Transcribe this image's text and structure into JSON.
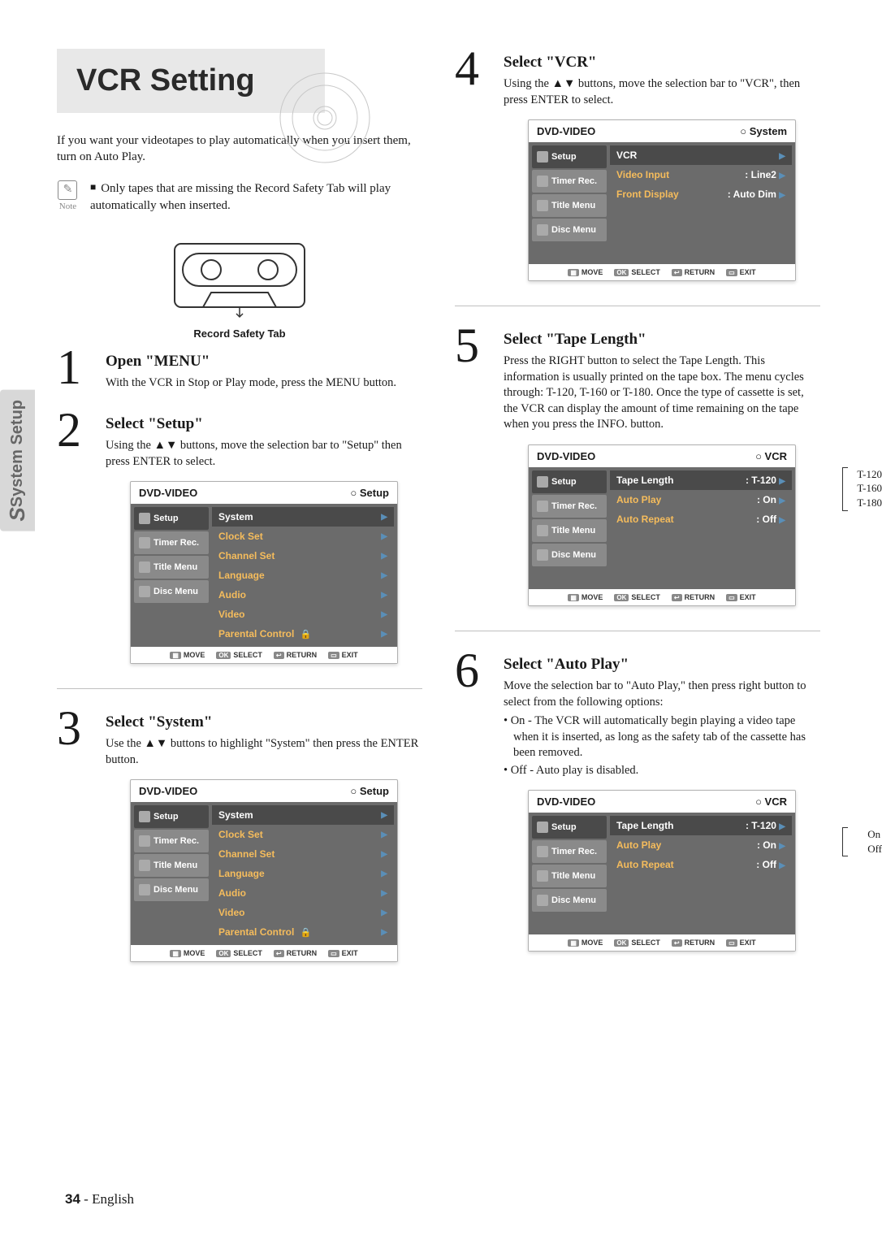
{
  "sidetab": "System Setup",
  "pageTitle": "VCR Setting",
  "intro": "If you want your videotapes to play automatically when you insert them, turn on Auto Play.",
  "noteLabel": "Note",
  "noteText": "Only tapes that are missing the Record Safety Tab will play automatically when inserted.",
  "cassetteCaption": "Record Safety Tab",
  "footer": {
    "page": "34",
    "sep": " - ",
    "lang": "English"
  },
  "steps": {
    "s1": {
      "num": "1",
      "title": "Open \"MENU\"",
      "body": "With the VCR in Stop or Play mode, press the MENU button."
    },
    "s2": {
      "num": "2",
      "title": "Select \"Setup\"",
      "body": "Using the ▲▼  buttons, move the selection bar to \"Setup\" then press ENTER to select."
    },
    "s3": {
      "num": "3",
      "title": "Select \"System\"",
      "body": "Use the ▲▼ buttons to highlight \"System\" then press the ENTER button."
    },
    "s4": {
      "num": "4",
      "title": "Select \"VCR\"",
      "body": "Using the ▲▼ buttons, move the selection bar to \"VCR\", then press ENTER to select."
    },
    "s5": {
      "num": "5",
      "title": "Select \"Tape Length\"",
      "body": "Press the RIGHT button to select the Tape Length. This information is usually printed on the tape box. The menu cycles through: T-120, T-160 or T-180. Once the type of cassette is set, the VCR can display the amount of time remaining on the tape when you press the INFO. button."
    },
    "s6": {
      "num": "6",
      "title": "Select \"Auto Play\"",
      "body": "Move the selection bar to \"Auto Play,\" then press right button to select from the following options:",
      "bullets": [
        "On - The VCR will automatically begin playing a video tape when it is inserted, as long as the safety tab of the cassette has been removed.",
        "Off - Auto play is disabled."
      ]
    }
  },
  "osd": {
    "hdrLeft": "DVD-VIDEO",
    "tabs": [
      "Setup",
      "Timer Rec.",
      "Title Menu",
      "Disc Menu"
    ],
    "footer": {
      "move": "MOVE",
      "select": "SELECT",
      "return": "RETURN",
      "exit": "EXIT"
    },
    "setup": {
      "crumb": "Setup",
      "items": [
        "System",
        "Clock Set",
        "Channel Set",
        "Language",
        "Audio",
        "Video",
        "Parental Control"
      ]
    },
    "system": {
      "crumb": "System",
      "rows": [
        {
          "label": "VCR",
          "val": "",
          "head": true
        },
        {
          "label": "Video Input",
          "val": ": Line2"
        },
        {
          "label": "Front Display",
          "val": ": Auto Dim"
        }
      ]
    },
    "vcr": {
      "crumb": "VCR",
      "rows": [
        {
          "label": "Tape Length",
          "val": ": T-120",
          "head": true
        },
        {
          "label": "Auto Play",
          "val": ": On"
        },
        {
          "label": "Auto Repeat",
          "val": ": Off"
        }
      ]
    }
  },
  "sideLabels": {
    "tape": [
      "T-120",
      "T-160",
      "T-180"
    ],
    "autoplay": [
      "On",
      "Off"
    ]
  },
  "colors": {
    "osdLabel": "#f5bc5c",
    "osdBg": "#6b6b6b",
    "arrow": "#5a8fb8"
  }
}
